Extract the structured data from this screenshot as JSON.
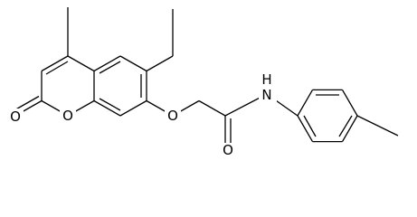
{
  "atoms": {
    "carbonyl_oxygen": "O",
    "ring_oxygen": "O",
    "ether_oxygen": "O",
    "amide_oxygen": "O",
    "nitrogen": "N",
    "hydrogen": "H"
  }
}
